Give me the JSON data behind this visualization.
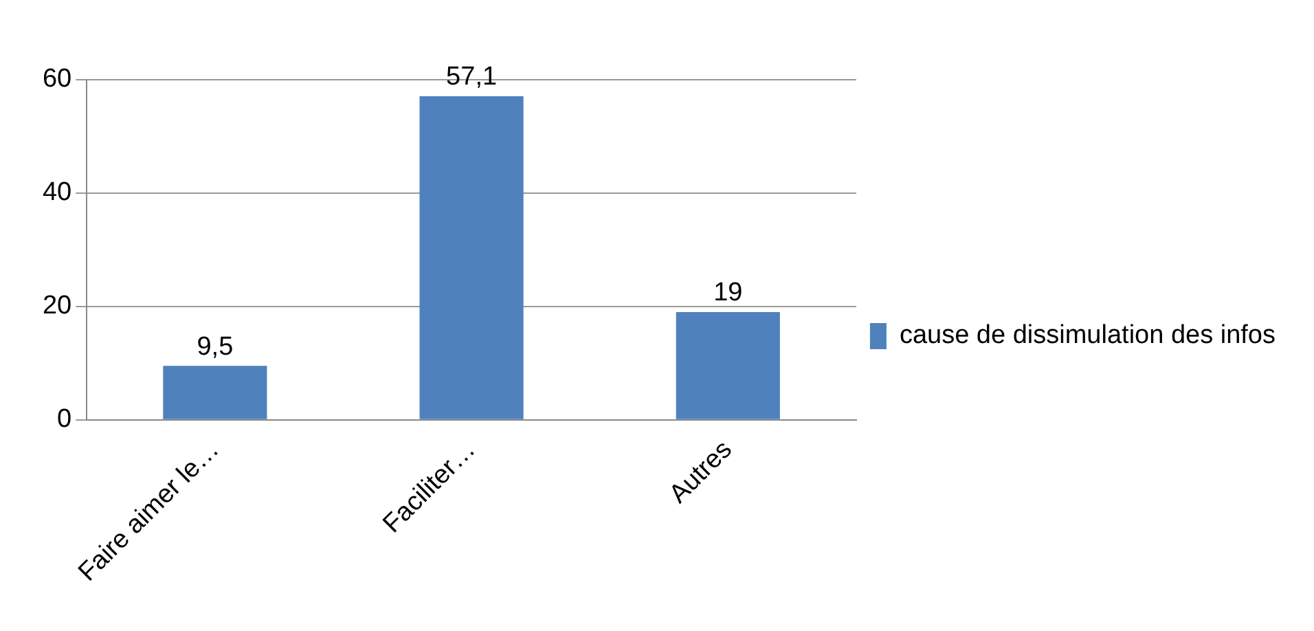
{
  "chart_data": {
    "type": "bar",
    "categories": [
      "Faire aimer le…",
      "Faciliter…",
      "Autres"
    ],
    "series": [
      {
        "name": "cause de dissimulation des infos",
        "color": "#4f81bd",
        "values": [
          9.5,
          57.1,
          19
        ]
      }
    ],
    "value_labels": [
      "9,5",
      "57,1",
      "19"
    ],
    "ylim": [
      0,
      60
    ],
    "yticks": [
      0,
      20,
      40,
      60
    ],
    "grid": "y",
    "legend": "right"
  }
}
